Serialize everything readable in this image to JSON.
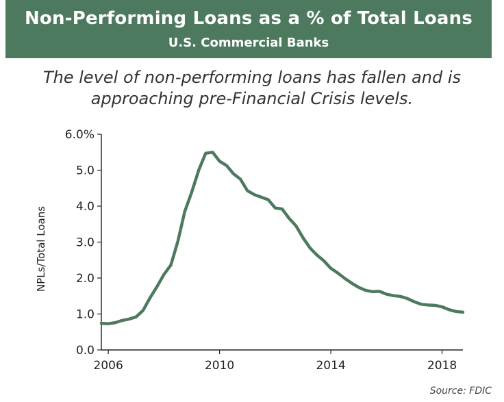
{
  "header": {
    "title": "Non-Performing Loans as a % of Total Loans",
    "subtitle": "U.S. Commercial Banks"
  },
  "caption": {
    "line1": "The level of non-performing loans has fallen and is",
    "line2": "approaching pre-Financial Crisis levels."
  },
  "source": "Source: FDIC",
  "colors": {
    "banner": "#4d7a5e",
    "line": "#4d7a5e"
  },
  "chart_data": {
    "type": "line",
    "title": "Non-Performing Loans as a % of Total Loans",
    "subtitle": "U.S. Commercial Banks",
    "xlabel": "",
    "ylabel": "NPLs/Total Loans",
    "xlim": [
      2005.75,
      2018.75
    ],
    "ylim": [
      0,
      6
    ],
    "grid": false,
    "xticks": [
      2006,
      2010,
      2014,
      2018
    ],
    "xtick_labels": [
      "2006",
      "2010",
      "2014",
      "2018"
    ],
    "yticks": [
      0,
      1,
      2,
      3,
      4,
      5,
      6
    ],
    "ytick_labels": [
      "0.0",
      "1.0",
      "2.0",
      "3.0",
      "4.0",
      "5.0",
      "6.0%"
    ],
    "series": [
      {
        "name": "",
        "x": [
          2005.75,
          2006.0,
          2006.25,
          2006.5,
          2006.75,
          2007.0,
          2007.25,
          2007.5,
          2007.75,
          2008.0,
          2008.25,
          2008.5,
          2008.75,
          2009.0,
          2009.25,
          2009.5,
          2009.75,
          2010.0,
          2010.25,
          2010.5,
          2010.75,
          2011.0,
          2011.25,
          2011.5,
          2011.75,
          2012.0,
          2012.25,
          2012.5,
          2012.75,
          2013.0,
          2013.25,
          2013.5,
          2013.75,
          2014.0,
          2014.25,
          2014.5,
          2014.75,
          2015.0,
          2015.25,
          2015.5,
          2015.75,
          2016.0,
          2016.25,
          2016.5,
          2016.75,
          2017.0,
          2017.25,
          2017.5,
          2017.75,
          2018.0,
          2018.25,
          2018.5,
          2018.75
        ],
        "y": [
          0.74,
          0.73,
          0.76,
          0.82,
          0.86,
          0.92,
          1.1,
          1.45,
          1.76,
          2.1,
          2.36,
          3.02,
          3.85,
          4.39,
          5.0,
          5.47,
          5.5,
          5.25,
          5.13,
          4.9,
          4.75,
          4.43,
          4.32,
          4.25,
          4.18,
          3.95,
          3.92,
          3.66,
          3.45,
          3.12,
          2.84,
          2.64,
          2.48,
          2.27,
          2.14,
          1.99,
          1.86,
          1.74,
          1.66,
          1.62,
          1.63,
          1.55,
          1.51,
          1.49,
          1.43,
          1.34,
          1.27,
          1.25,
          1.24,
          1.2,
          1.12,
          1.07,
          1.05
        ]
      }
    ]
  }
}
